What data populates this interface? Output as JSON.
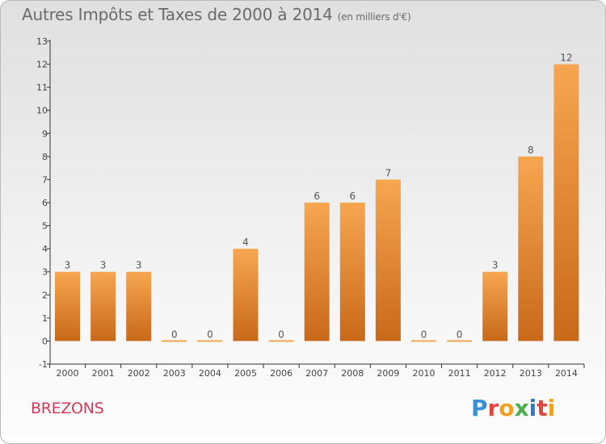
{
  "header": {
    "title": "Autres Impôts et Taxes de 2000 à 2014",
    "subtitle": "(en milliers d'€)"
  },
  "footer": {
    "commune": "BREZONS",
    "logo_letters": [
      "P",
      "r",
      "o",
      "x",
      "i",
      "t",
      "i"
    ],
    "logo_colors": [
      "#3a8fd6",
      "#e0463e",
      "#f2a020",
      "#4cae4c",
      "#2c7bc8",
      "#e0463e",
      "#f2a020"
    ]
  },
  "chart_data": {
    "type": "bar",
    "categories": [
      "2000",
      "2001",
      "2002",
      "2003",
      "2004",
      "2005",
      "2006",
      "2007",
      "2008",
      "2009",
      "2010",
      "2011",
      "2012",
      "2013",
      "2014"
    ],
    "values": [
      3,
      3,
      3,
      0,
      0,
      4,
      0,
      6,
      6,
      7,
      0,
      0,
      3,
      8,
      12
    ],
    "data_labels": [
      "3",
      "3",
      "3",
      "0",
      "0",
      "4",
      "0",
      "6",
      "6",
      "7",
      "0",
      "0",
      "3",
      "8",
      "12"
    ],
    "title": "Autres Impôts et Taxes de 2000 à 2014",
    "ylim": [
      -1,
      13
    ],
    "yticks": [
      "-1",
      "0",
      "1",
      "2",
      "3",
      "4",
      "5",
      "6",
      "7",
      "8",
      "9",
      "10",
      "11",
      "12",
      "13"
    ],
    "grid": false,
    "colors": {
      "bar_top": "#f7a650",
      "bar_bottom": "#c8691a",
      "axis": "#333333"
    }
  }
}
